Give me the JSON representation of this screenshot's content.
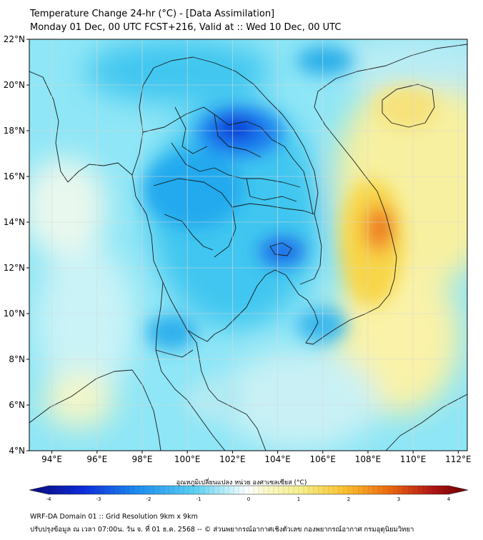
{
  "header": {
    "title_line1": "Temperature Change 24-hr (°C) - [Data Assimilation]",
    "title_line2": "Monday 01 Dec, 00 UTC FCST+216, Valid at :: Wed 10 Dec, 00 UTC"
  },
  "map": {
    "lat_labels": [
      "22°N",
      "20°N",
      "18°N",
      "16°N",
      "14°N",
      "12°N",
      "10°N",
      "8°N",
      "6°N",
      "4°N"
    ],
    "lon_labels": [
      "94°E",
      "96°E",
      "98°E",
      "100°E",
      "102°E",
      "104°E",
      "106°E",
      "108°E",
      "110°E",
      "112°E"
    ]
  },
  "colorbar": {
    "label": "อุณหภูมิเปลี่ยนแปลง หน่วย องศาเซลเซียส (°C)",
    "ticks": [
      "-4",
      "-3",
      "-2",
      "-1",
      "0",
      "1",
      "2",
      "3",
      "4"
    ],
    "colors": [
      "#0a0a78",
      "#0d2bd9",
      "#1f8ff0",
      "#5ed2f4",
      "#ffffff",
      "#f5ef8a",
      "#fbc02d",
      "#ee6a10",
      "#b01515",
      "#6a0000"
    ]
  },
  "footer": {
    "line1": "WRF-DA Domain 01 :: Grid Resolution 9km x 9km",
    "line2": "ปรับปรุงข้อมูล ณ เวลา 07:00น. วัน จ. ที่ 01 ธ.ค. 2568 -- © ส่วนพยากรณ์อากาศเชิงตัวเลข กองพยากรณ์อากาศ กรมอุตุนิยมวิทยา"
  }
}
